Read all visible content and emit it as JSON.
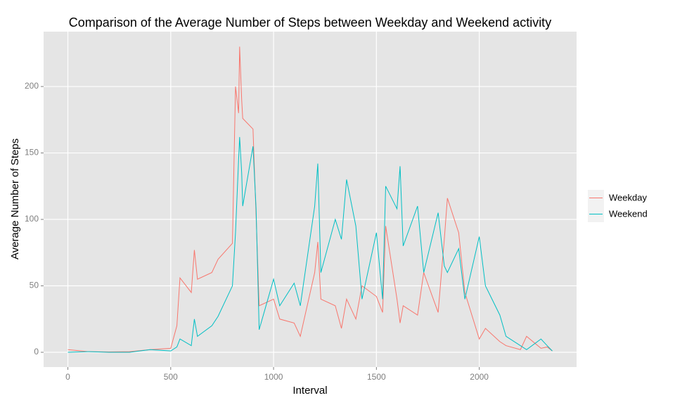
{
  "chart_data": {
    "type": "line",
    "title": "Comparison of the Average Number of Steps between Weekday and Weekend activity",
    "xlabel": "Interval",
    "ylabel": "Average Number of Steps",
    "x": [
      0,
      100,
      200,
      300,
      400,
      500,
      530,
      545,
      600,
      615,
      630,
      700,
      730,
      800,
      815,
      830,
      835,
      845,
      850,
      900,
      915,
      930,
      1000,
      1030,
      1100,
      1130,
      1200,
      1215,
      1230,
      1300,
      1330,
      1355,
      1400,
      1430,
      1500,
      1530,
      1545,
      1600,
      1615,
      1630,
      1700,
      1730,
      1800,
      1830,
      1845,
      1900,
      1930,
      2000,
      2030,
      2100,
      2130,
      2200,
      2230,
      2300,
      2330,
      2355
    ],
    "series": [
      {
        "name": "Weekday",
        "color": "#F8766D",
        "values": [
          2,
          0.5,
          0.3,
          0.5,
          2,
          3,
          20,
          56,
          45,
          77,
          55,
          60,
          70,
          82,
          200,
          180,
          230,
          190,
          176,
          168,
          103,
          35,
          40,
          25,
          22,
          12,
          60,
          83,
          40,
          35,
          18,
          40,
          25,
          50,
          42,
          30,
          95,
          40,
          22,
          35,
          28,
          60,
          30,
          85,
          116,
          90,
          45,
          10,
          18,
          8,
          5,
          2,
          12,
          3,
          4,
          1
        ]
      },
      {
        "name": "Weekend",
        "color": "#00BFC4",
        "values": [
          0,
          0.5,
          0,
          0,
          2,
          1,
          4,
          10,
          5,
          25,
          12,
          20,
          27,
          50,
          90,
          145,
          162,
          135,
          110,
          155,
          108,
          17,
          55,
          35,
          52,
          35,
          110,
          142,
          60,
          100,
          85,
          130,
          95,
          40,
          90,
          40,
          125,
          108,
          140,
          80,
          110,
          60,
          105,
          65,
          60,
          78,
          40,
          87,
          50,
          28,
          12,
          5,
          2,
          10,
          5,
          1
        ]
      }
    ],
    "xlim": [
      -118,
      2473
    ],
    "xticks": [
      0,
      500,
      1000,
      1500,
      2000
    ],
    "ylim": [
      -11.1,
      241.3
    ],
    "yticks": [
      0,
      50,
      100,
      150,
      200
    ],
    "grid": true,
    "legend": "right"
  }
}
